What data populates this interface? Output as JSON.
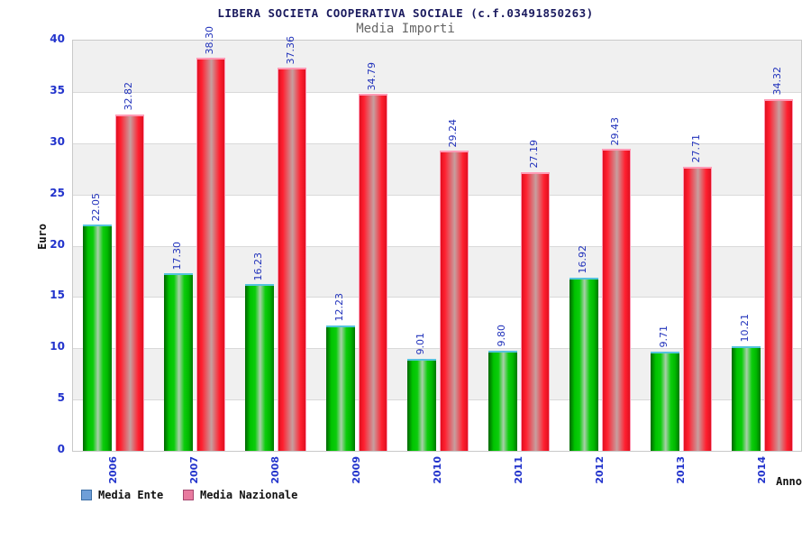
{
  "header": {
    "title": "LIBERA SOCIETA COOPERATIVA SOCIALE (c.f.03491850263)",
    "subtitle": "Media Importi"
  },
  "chart_data": {
    "type": "bar",
    "title": "LIBERA SOCIETA COOPERATIVA SOCIALE (c.f.03491850263)",
    "subtitle": "Media Importi",
    "xlabel": "Anno",
    "ylabel": "Euro",
    "ylim": [
      0,
      40
    ],
    "ytick_step": 5,
    "grid": "alternating horizontal bands, gray top band, light gridlines every 5",
    "legend_position": "bottom-left",
    "value_labels": "rotated 90deg, two decimals, above each bar",
    "categories": [
      "2006",
      "2007",
      "2008",
      "2009",
      "2010",
      "2011",
      "2012",
      "2013",
      "2014"
    ],
    "series": [
      {
        "name": "Media Ente",
        "values": [
          22.05,
          17.3,
          16.23,
          12.23,
          9.01,
          9.8,
          16.92,
          9.71,
          10.21
        ],
        "bar_style": "green-cylinder",
        "legend_swatch": "#6f9fd8",
        "legend_swatch_border": "#3a6ea5"
      },
      {
        "name": "Media Nazionale",
        "values": [
          32.82,
          38.3,
          37.36,
          34.79,
          29.24,
          27.19,
          29.43,
          27.71,
          34.32
        ],
        "bar_style": "red-cylinder",
        "legend_swatch": "#e87a9f",
        "legend_swatch_border": "#a5476f"
      }
    ],
    "colors": {
      "title": "#1a1a5e",
      "subtitle": "#666666",
      "axis_labels": "#2233cc",
      "value_labels": "#2233bb",
      "band_gray": "#f0f0f0",
      "band_white": "#ffffff",
      "gridline": "#d9d9d9",
      "green_bar": "#00cc00",
      "green_bar_top": "#55c3dd",
      "red_bar": "#ff2030",
      "red_bar_border": "#ff9ab5"
    }
  }
}
